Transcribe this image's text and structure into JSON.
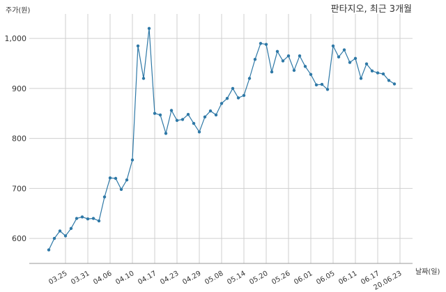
{
  "chart_data": {
    "type": "line",
    "title": "판타지오, 최근 3개월",
    "ylabel": "주가(원)",
    "xlabel": "날짜(일)",
    "ylim": [
      550,
      1035
    ],
    "grid": true,
    "yticks": [
      600,
      700,
      800,
      900,
      1000
    ],
    "ytick_labels": [
      "600",
      "700",
      "800",
      "900",
      "1,000"
    ],
    "xtick_labels": [
      "03.25",
      "03.31",
      "04.06",
      "04.10",
      "04.17",
      "04.23",
      "04.29",
      "05.08",
      "05.14",
      "05.20",
      "05.26",
      "06.01",
      "06.05",
      "06.11",
      "06.17",
      "20.06.23"
    ],
    "xtick_index": [
      3,
      7,
      11,
      15,
      19,
      23,
      27,
      31,
      35,
      39,
      43,
      47,
      51,
      55,
      59,
      63
    ],
    "line_color": "#2e78a6",
    "series": [
      {
        "values": [
          577,
          600,
          615,
          605,
          620,
          640,
          643,
          639,
          640,
          635,
          683,
          721,
          720,
          698,
          717,
          757,
          985,
          920,
          1020,
          850,
          847,
          810,
          856,
          836,
          838,
          848,
          830,
          813,
          843,
          855,
          847,
          870,
          880,
          900,
          881,
          886,
          920,
          958,
          990,
          988,
          933,
          974,
          955,
          965,
          936,
          965,
          944,
          928,
          907,
          908,
          898,
          985,
          963,
          977,
          952,
          960,
          920,
          949,
          935,
          931,
          929,
          916,
          909
        ]
      }
    ]
  }
}
